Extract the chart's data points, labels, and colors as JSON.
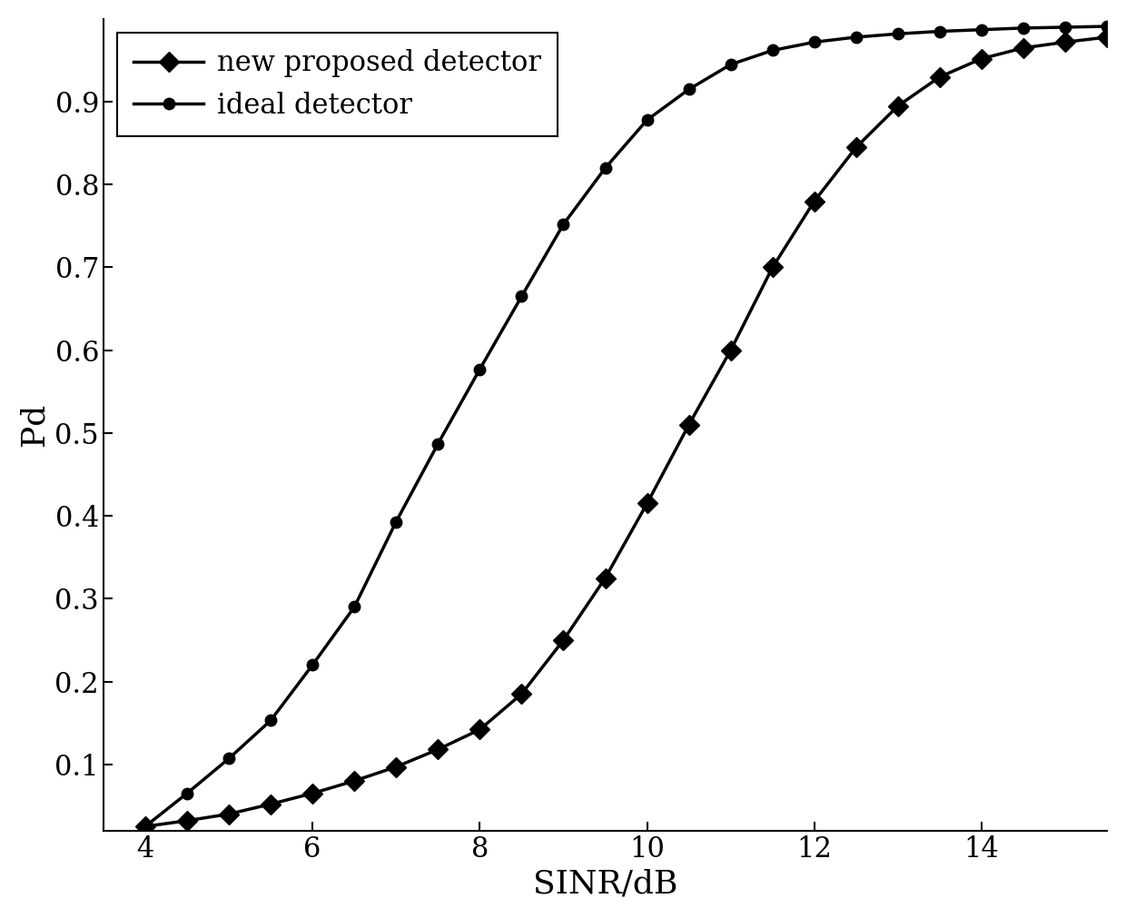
{
  "title": "",
  "xlabel": "SINR/dB",
  "ylabel": "Pd",
  "xlim": [
    3.5,
    15.5
  ],
  "ylim": [
    0.02,
    1.0
  ],
  "xticks": [
    4,
    6,
    8,
    10,
    12,
    14
  ],
  "yticks": [
    0.1,
    0.2,
    0.3,
    0.4,
    0.5,
    0.6,
    0.7,
    0.8,
    0.9
  ],
  "background_color": "#ffffff",
  "line_color": "#000000",
  "proposed_x": [
    4.0,
    4.5,
    5.0,
    5.5,
    6.0,
    6.5,
    7.0,
    7.5,
    8.0,
    8.5,
    9.0,
    9.5,
    10.0,
    10.5,
    11.0,
    11.5,
    12.0,
    12.5,
    13.0,
    13.5,
    14.0,
    14.5,
    15.0,
    15.5
  ],
  "proposed_y": [
    0.025,
    0.032,
    0.04,
    0.052,
    0.065,
    0.08,
    0.097,
    0.118,
    0.142,
    0.185,
    0.25,
    0.325,
    0.415,
    0.51,
    0.6,
    0.7,
    0.78,
    0.845,
    0.895,
    0.93,
    0.952,
    0.965,
    0.972,
    0.978
  ],
  "ideal_x": [
    4.0,
    4.5,
    5.0,
    5.5,
    6.0,
    6.5,
    7.0,
    7.5,
    8.0,
    8.5,
    9.0,
    9.5,
    10.0,
    10.5,
    11.0,
    11.5,
    12.0,
    12.5,
    13.0,
    13.5,
    14.0,
    14.5,
    15.0,
    15.5
  ],
  "ideal_y": [
    0.025,
    0.065,
    0.107,
    0.153,
    0.22,
    0.29,
    0.393,
    0.487,
    0.577,
    0.665,
    0.752,
    0.82,
    0.878,
    0.915,
    0.945,
    0.962,
    0.972,
    0.978,
    0.982,
    0.985,
    0.987,
    0.989,
    0.99,
    0.991
  ],
  "legend_proposed": "new proposed detector",
  "legend_ideal": "ideal detector",
  "fontsize_axis_label": 26,
  "fontsize_tick": 22,
  "fontsize_legend": 22,
  "linewidth": 2.5,
  "markersize_diamond": 11,
  "markersize_circle": 9
}
